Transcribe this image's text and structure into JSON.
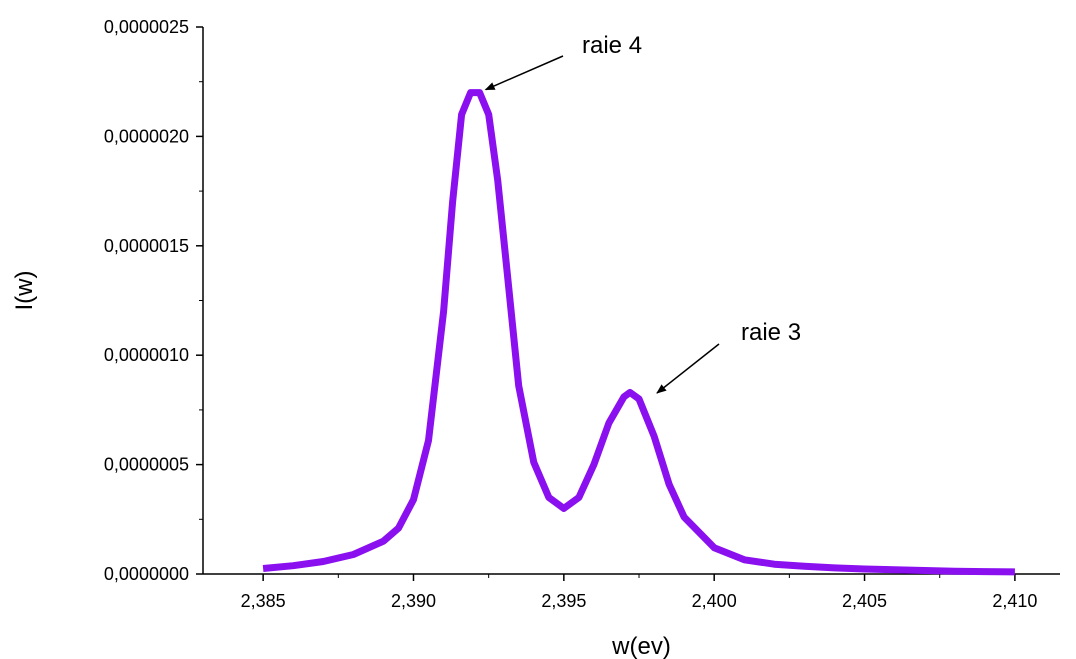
{
  "chart_data": {
    "type": "line",
    "xlabel": "w(ev)",
    "ylabel": "I(w)",
    "xlim": [
      2.383,
      2.4115
    ],
    "ylim": [
      0,
      2.5e-06
    ],
    "x_ticks": [
      2.385,
      2.39,
      2.395,
      2.4,
      2.405,
      2.41
    ],
    "x_tick_labels": [
      "2,385",
      "2,390",
      "2,395",
      "2,400",
      "2,405",
      "2,410"
    ],
    "y_ticks": [
      0,
      5e-07,
      1e-06,
      1.5e-06,
      2e-06,
      2.5e-06
    ],
    "y_tick_labels": [
      "0,0000000",
      "0,0000005",
      "0,0000010",
      "0,0000015",
      "0,0000020",
      "0,0000025"
    ],
    "grid": false,
    "series": [
      {
        "color": "#8a10f0",
        "x": [
          2.385,
          2.386,
          2.387,
          2.388,
          2.389,
          2.3895,
          2.39,
          2.3905,
          2.391,
          2.3913,
          2.3916,
          2.3919,
          2.3922,
          2.3925,
          2.3928,
          2.3931,
          2.3935,
          2.394,
          2.3945,
          2.395,
          2.3955,
          2.396,
          2.3965,
          2.397,
          2.3972,
          2.3975,
          2.398,
          2.3985,
          2.399,
          2.4,
          2.401,
          2.402,
          2.403,
          2.404,
          2.405,
          2.406,
          2.407,
          2.408,
          2.409,
          2.41
        ],
        "y": [
          2.5e-08,
          3.8e-08,
          5.7e-08,
          8.9e-08,
          1.5e-07,
          2.1e-07,
          3.4e-07,
          6.1e-07,
          1.2e-06,
          1.7e-06,
          2.1e-06,
          2.2e-06,
          2.2e-06,
          2.1e-06,
          1.8e-06,
          1.4e-06,
          8.6e-07,
          5.1e-07,
          3.5e-07,
          3e-07,
          3.5e-07,
          5e-07,
          6.9e-07,
          8.1e-07,
          8.3e-07,
          8e-07,
          6.3e-07,
          4.1e-07,
          2.6e-07,
          1.2e-07,
          6.5e-08,
          4.5e-08,
          3.5e-08,
          2.8e-08,
          2.3e-08,
          1.9e-08,
          1.6e-08,
          1.3e-08,
          1.1e-08,
          9.5e-09
        ]
      }
    ],
    "annotations": [
      {
        "text": "raie 4",
        "x": 2.3922,
        "y": 2.2e-06
      },
      {
        "text": "raie 3",
        "x": 2.3973,
        "y": 8.5e-07
      }
    ]
  }
}
